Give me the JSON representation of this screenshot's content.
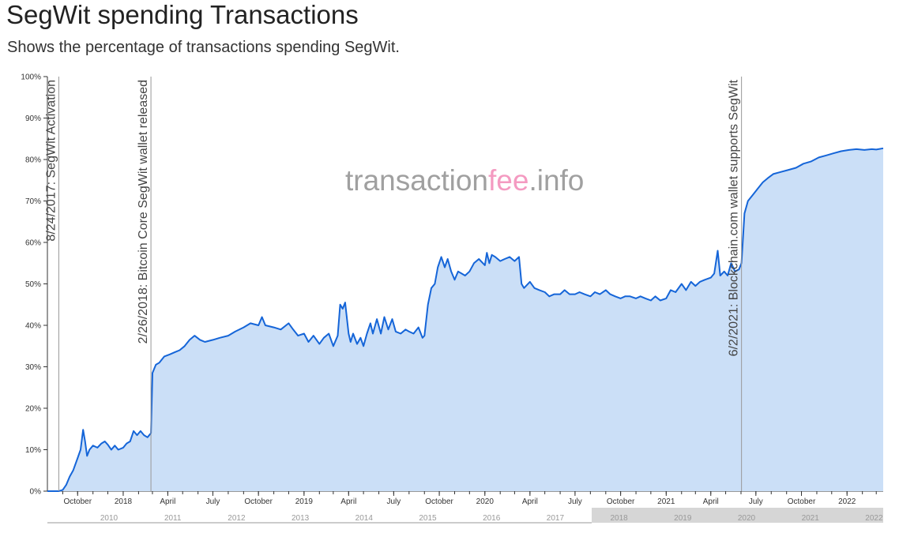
{
  "header": {
    "title": "SegWit spending Transactions",
    "subtitle": "Shows the percentage of transactions spending SegWit."
  },
  "watermark": {
    "part1": "transaction",
    "part2": "fee",
    "part3": ".info",
    "color_gray": "#a0a0a0",
    "color_pink": "#f49ac1"
  },
  "chart_data": {
    "type": "area",
    "title": "SegWit spending Transactions",
    "subtitle": "Shows the percentage of transactions spending SegWit.",
    "xlabel": "",
    "ylabel": "",
    "xlim": [
      "2017-08-01",
      "2022-03-15"
    ],
    "ylim": [
      0,
      100
    ],
    "y_unit": "%",
    "grid": false,
    "series_color": "#1565d8",
    "fill_color": "#cbdff7",
    "y_ticks": [
      "0%",
      "10%",
      "20%",
      "30%",
      "40%",
      "50%",
      "60%",
      "70%",
      "80%",
      "90%",
      "100%"
    ],
    "x_ticks": [
      {
        "date": "2017-10-01",
        "label": "October"
      },
      {
        "date": "2018-01-01",
        "label": "2018"
      },
      {
        "date": "2018-04-01",
        "label": "April"
      },
      {
        "date": "2018-07-01",
        "label": "July"
      },
      {
        "date": "2018-10-01",
        "label": "October"
      },
      {
        "date": "2019-01-01",
        "label": "2019"
      },
      {
        "date": "2019-04-01",
        "label": "April"
      },
      {
        "date": "2019-07-01",
        "label": "July"
      },
      {
        "date": "2019-10-01",
        "label": "October"
      },
      {
        "date": "2020-01-01",
        "label": "2020"
      },
      {
        "date": "2020-04-01",
        "label": "April"
      },
      {
        "date": "2020-07-01",
        "label": "July"
      },
      {
        "date": "2020-10-01",
        "label": "October"
      },
      {
        "date": "2021-01-01",
        "label": "2021"
      },
      {
        "date": "2021-04-01",
        "label": "April"
      },
      {
        "date": "2021-07-01",
        "label": "July"
      },
      {
        "date": "2021-10-01",
        "label": "October"
      },
      {
        "date": "2022-01-01",
        "label": "2022"
      }
    ],
    "annotations": [
      {
        "date": "2017-08-24",
        "label": "8/24/2017: SegWit Activation"
      },
      {
        "date": "2018-02-26",
        "label": "2/26/2018: Bitcoin Core SegWit wallet released"
      },
      {
        "date": "2021-06-02",
        "label": "6/2/2021: Blockchain.com wallet supports SegWit"
      }
    ],
    "navigator": {
      "labels": [
        "2010",
        "2011",
        "2012",
        "2013",
        "2014",
        "2015",
        "2016",
        "2017",
        "2018",
        "2019",
        "2020",
        "2021",
        "2022"
      ],
      "selected_from": "2018",
      "selected_to": "2022"
    },
    "series": [
      {
        "points": [
          [
            "2017-08-01",
            0
          ],
          [
            "2017-08-24",
            0
          ],
          [
            "2017-09-01",
            0.3
          ],
          [
            "2017-09-08",
            1.5
          ],
          [
            "2017-09-15",
            3.5
          ],
          [
            "2017-09-22",
            5
          ],
          [
            "2017-10-01",
            8
          ],
          [
            "2017-10-07",
            10
          ],
          [
            "2017-10-12",
            14.8
          ],
          [
            "2017-10-16",
            12
          ],
          [
            "2017-10-20",
            8.5
          ],
          [
            "2017-10-25",
            10
          ],
          [
            "2017-11-01",
            11
          ],
          [
            "2017-11-10",
            10.5
          ],
          [
            "2017-11-18",
            11.5
          ],
          [
            "2017-11-25",
            12
          ],
          [
            "2017-12-01",
            11.2
          ],
          [
            "2017-12-08",
            10
          ],
          [
            "2017-12-15",
            11
          ],
          [
            "2017-12-22",
            10
          ],
          [
            "2018-01-01",
            10.5
          ],
          [
            "2018-01-08",
            11.5
          ],
          [
            "2018-01-15",
            12
          ],
          [
            "2018-01-22",
            14.5
          ],
          [
            "2018-01-29",
            13.5
          ],
          [
            "2018-02-05",
            14.5
          ],
          [
            "2018-02-12",
            13.5
          ],
          [
            "2018-02-19",
            13
          ],
          [
            "2018-02-26",
            14
          ],
          [
            "2018-03-01",
            28.5
          ],
          [
            "2018-03-08",
            30.5
          ],
          [
            "2018-03-15",
            31
          ],
          [
            "2018-03-25",
            32.5
          ],
          [
            "2018-04-05",
            33
          ],
          [
            "2018-04-15",
            33.5
          ],
          [
            "2018-04-25",
            34
          ],
          [
            "2018-05-05",
            35
          ],
          [
            "2018-05-15",
            36.5
          ],
          [
            "2018-05-25",
            37.5
          ],
          [
            "2018-06-05",
            36.5
          ],
          [
            "2018-06-15",
            36
          ],
          [
            "2018-07-01",
            36.5
          ],
          [
            "2018-07-15",
            37
          ],
          [
            "2018-08-01",
            37.5
          ],
          [
            "2018-08-15",
            38.5
          ],
          [
            "2018-09-01",
            39.5
          ],
          [
            "2018-09-15",
            40.5
          ],
          [
            "2018-10-01",
            40
          ],
          [
            "2018-10-08",
            42
          ],
          [
            "2018-10-15",
            40
          ],
          [
            "2018-11-01",
            39.5
          ],
          [
            "2018-11-15",
            39
          ],
          [
            "2018-12-01",
            40.5
          ],
          [
            "2018-12-10",
            39
          ],
          [
            "2018-12-20",
            37.5
          ],
          [
            "2019-01-01",
            38
          ],
          [
            "2019-01-10",
            36
          ],
          [
            "2019-01-20",
            37.5
          ],
          [
            "2019-02-01",
            35.5
          ],
          [
            "2019-02-10",
            37
          ],
          [
            "2019-02-20",
            38
          ],
          [
            "2019-03-01",
            35
          ],
          [
            "2019-03-10",
            37.5
          ],
          [
            "2019-03-15",
            45
          ],
          [
            "2019-03-20",
            44
          ],
          [
            "2019-03-25",
            45.5
          ],
          [
            "2019-04-01",
            38
          ],
          [
            "2019-04-05",
            36
          ],
          [
            "2019-04-10",
            38
          ],
          [
            "2019-04-18",
            35.5
          ],
          [
            "2019-04-25",
            37
          ],
          [
            "2019-05-01",
            35
          ],
          [
            "2019-05-08",
            38
          ],
          [
            "2019-05-15",
            40.5
          ],
          [
            "2019-05-20",
            38
          ],
          [
            "2019-05-28",
            41.5
          ],
          [
            "2019-06-05",
            38
          ],
          [
            "2019-06-12",
            42
          ],
          [
            "2019-06-20",
            39
          ],
          [
            "2019-06-28",
            41.5
          ],
          [
            "2019-07-05",
            38.5
          ],
          [
            "2019-07-15",
            38
          ],
          [
            "2019-07-25",
            39
          ],
          [
            "2019-08-01",
            38.5
          ],
          [
            "2019-08-10",
            38
          ],
          [
            "2019-08-20",
            39.5
          ],
          [
            "2019-08-28",
            37
          ],
          [
            "2019-09-01",
            37.5
          ],
          [
            "2019-09-08",
            45
          ],
          [
            "2019-09-15",
            49
          ],
          [
            "2019-09-22",
            50
          ],
          [
            "2019-09-28",
            54
          ],
          [
            "2019-10-05",
            56.5
          ],
          [
            "2019-10-12",
            54
          ],
          [
            "2019-10-18",
            56
          ],
          [
            "2019-10-25",
            53
          ],
          [
            "2019-11-01",
            51
          ],
          [
            "2019-11-08",
            53
          ],
          [
            "2019-11-15",
            52.5
          ],
          [
            "2019-11-22",
            52
          ],
          [
            "2019-12-01",
            53
          ],
          [
            "2019-12-10",
            55
          ],
          [
            "2019-12-20",
            56
          ],
          [
            "2020-01-01",
            54.5
          ],
          [
            "2020-01-05",
            57.5
          ],
          [
            "2020-01-10",
            55
          ],
          [
            "2020-01-15",
            57
          ],
          [
            "2020-01-22",
            56.5
          ],
          [
            "2020-02-01",
            55.5
          ],
          [
            "2020-02-10",
            56
          ],
          [
            "2020-02-20",
            56.5
          ],
          [
            "2020-03-01",
            55.5
          ],
          [
            "2020-03-10",
            56.5
          ],
          [
            "2020-03-15",
            50
          ],
          [
            "2020-03-20",
            49
          ],
          [
            "2020-04-01",
            50.5
          ],
          [
            "2020-04-10",
            49
          ],
          [
            "2020-04-20",
            48.5
          ],
          [
            "2020-05-01",
            48
          ],
          [
            "2020-05-10",
            47
          ],
          [
            "2020-05-20",
            47.5
          ],
          [
            "2020-06-01",
            47.5
          ],
          [
            "2020-06-10",
            48.5
          ],
          [
            "2020-06-20",
            47.5
          ],
          [
            "2020-07-01",
            47.5
          ],
          [
            "2020-07-10",
            48
          ],
          [
            "2020-07-20",
            47.5
          ],
          [
            "2020-08-01",
            47
          ],
          [
            "2020-08-10",
            48
          ],
          [
            "2020-08-20",
            47.5
          ],
          [
            "2020-09-01",
            48.5
          ],
          [
            "2020-09-10",
            47.5
          ],
          [
            "2020-09-20",
            47
          ],
          [
            "2020-10-01",
            46.5
          ],
          [
            "2020-10-10",
            47
          ],
          [
            "2020-10-20",
            47
          ],
          [
            "2020-11-01",
            46.5
          ],
          [
            "2020-11-10",
            47
          ],
          [
            "2020-11-20",
            46.5
          ],
          [
            "2020-12-01",
            46
          ],
          [
            "2020-12-10",
            47
          ],
          [
            "2020-12-20",
            46
          ],
          [
            "2021-01-01",
            46.5
          ],
          [
            "2021-01-10",
            48.5
          ],
          [
            "2021-01-20",
            48
          ],
          [
            "2021-02-01",
            50
          ],
          [
            "2021-02-10",
            48.5
          ],
          [
            "2021-02-20",
            50.5
          ],
          [
            "2021-03-01",
            49.5
          ],
          [
            "2021-03-10",
            50.5
          ],
          [
            "2021-03-20",
            51
          ],
          [
            "2021-04-01",
            51.5
          ],
          [
            "2021-04-08",
            52.5
          ],
          [
            "2021-04-15",
            58
          ],
          [
            "2021-04-20",
            52
          ],
          [
            "2021-04-28",
            53
          ],
          [
            "2021-05-05",
            52
          ],
          [
            "2021-05-12",
            55
          ],
          [
            "2021-05-20",
            53
          ],
          [
            "2021-05-28",
            53.5
          ],
          [
            "2021-06-02",
            55
          ],
          [
            "2021-06-08",
            67
          ],
          [
            "2021-06-15",
            70
          ],
          [
            "2021-06-25",
            71.5
          ],
          [
            "2021-07-05",
            73
          ],
          [
            "2021-07-15",
            74.5
          ],
          [
            "2021-07-25",
            75.5
          ],
          [
            "2021-08-05",
            76.5
          ],
          [
            "2021-08-20",
            77
          ],
          [
            "2021-09-05",
            77.5
          ],
          [
            "2021-09-20",
            78
          ],
          [
            "2021-10-05",
            79
          ],
          [
            "2021-10-20",
            79.5
          ],
          [
            "2021-11-05",
            80.5
          ],
          [
            "2021-11-20",
            81
          ],
          [
            "2021-12-05",
            81.5
          ],
          [
            "2021-12-20",
            82
          ],
          [
            "2022-01-05",
            82.3
          ],
          [
            "2022-01-20",
            82.5
          ],
          [
            "2022-02-05",
            82.3
          ],
          [
            "2022-02-20",
            82.5
          ],
          [
            "2022-03-01",
            82.4
          ],
          [
            "2022-03-15",
            82.7
          ]
        ]
      }
    ]
  }
}
